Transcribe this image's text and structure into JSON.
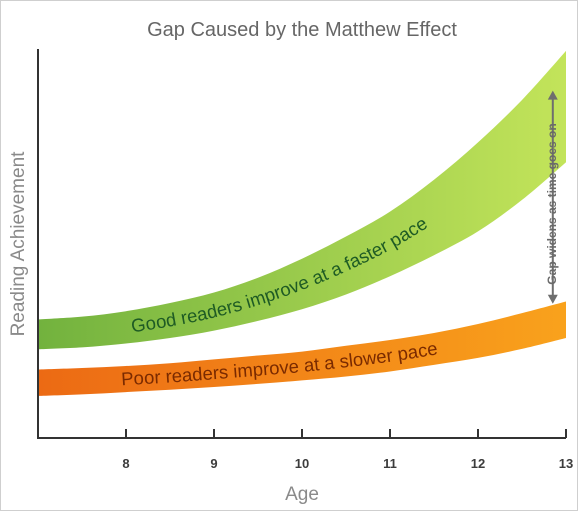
{
  "chart_data": {
    "type": "area",
    "title": "Gap Caused by the Matthew Effect",
    "xlabel": "Age",
    "ylabel": "Reading Achievement",
    "xlim": [
      7,
      13
    ],
    "x_ticks": [
      8,
      9,
      10,
      11,
      12,
      13
    ],
    "ylim": [
      0,
      100
    ],
    "y_ticks_shown": false,
    "grid": false,
    "series": [
      {
        "name": "Good readers improve at a faster pace",
        "color": "#8cc63e",
        "x": [
          7,
          7.5,
          8,
          8.5,
          9,
          9.5,
          10,
          10.5,
          11,
          11.5,
          12,
          12.5,
          13
        ],
        "lower": [
          22.8,
          23.3,
          24.3,
          25.7,
          27.6,
          30.1,
          33.1,
          36.9,
          41.6,
          47.0,
          53.1,
          61.2,
          70.9
        ],
        "upper": [
          30.5,
          31.2,
          32.6,
          34.7,
          37.4,
          41.2,
          46.1,
          51.8,
          58.2,
          66.4,
          76.0,
          86.9,
          99.5
        ]
      },
      {
        "name": "Poor readers improve at a slower pace",
        "color": "#f07c1a",
        "x": [
          7,
          7.5,
          8,
          8.5,
          9,
          9.5,
          10,
          10.5,
          11,
          11.5,
          12,
          12.5,
          13
        ],
        "lower": [
          10.8,
          11.2,
          11.8,
          12.4,
          13.1,
          13.9,
          14.8,
          15.8,
          17.1,
          18.8,
          20.6,
          22.9,
          25.7
        ],
        "upper": [
          17.6,
          18.0,
          18.5,
          19.2,
          20.2,
          21.2,
          22.2,
          23.7,
          25.2,
          27.0,
          29.3,
          32.1,
          35.1
        ]
      }
    ],
    "annotations": {
      "gap_label": "Gap widens as time goes on",
      "gap_arrow": {
        "x": 12.85,
        "from": 34.5,
        "to": 89.3
      }
    },
    "colors": {
      "good_band_light": "#c3e45a",
      "good_band_dark": "#72b23e",
      "good_label": "#1e5b24",
      "poor_band_light": "#f9a21c",
      "poor_band_dark": "#ec6a14",
      "poor_label": "#7a2a00",
      "arrow": "#6e6e6e",
      "axis": "#333333"
    }
  }
}
